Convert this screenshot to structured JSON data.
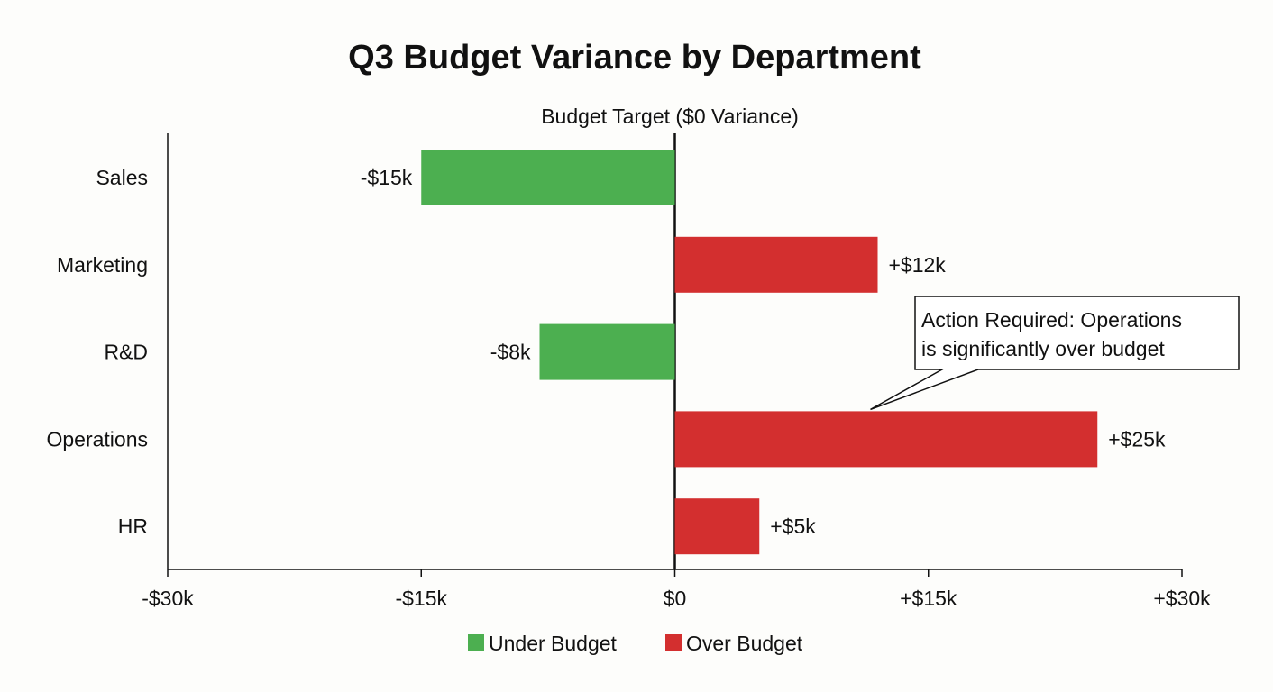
{
  "chart_data": {
    "type": "bar",
    "orientation": "horizontal",
    "title": "Q3 Budget Variance by Department",
    "reference_line": {
      "label": "Budget Target ($0 Variance)",
      "value": 0
    },
    "categories": [
      "Sales",
      "Marketing",
      "R&D",
      "Operations",
      "HR"
    ],
    "values": [
      -15,
      12,
      -8,
      25,
      5
    ],
    "data_labels": [
      "-$15k",
      "+$12k",
      "-$8k",
      "+$25k",
      "+$5k"
    ],
    "unit": "k",
    "xlim": [
      -30,
      30
    ],
    "x_ticks": [
      -30,
      -15,
      0,
      15,
      30
    ],
    "x_tick_labels": [
      "-$30k",
      "-$15k",
      "$0",
      "+$15k",
      "+$30k"
    ],
    "xlabel": "",
    "ylabel": "",
    "grid": false,
    "legend": {
      "placement": "bottom-center",
      "entries": [
        {
          "label": "Under Budget",
          "color": "#4caf50"
        },
        {
          "label": "Over Budget",
          "color": "#d32f2f"
        }
      ]
    },
    "colors": {
      "under": "#4caf50",
      "over": "#d32f2f"
    },
    "annotation": {
      "lines": [
        "Action Required: Operations",
        "is significantly over budget"
      ],
      "target_category": "Operations",
      "target_value": 12
    }
  }
}
